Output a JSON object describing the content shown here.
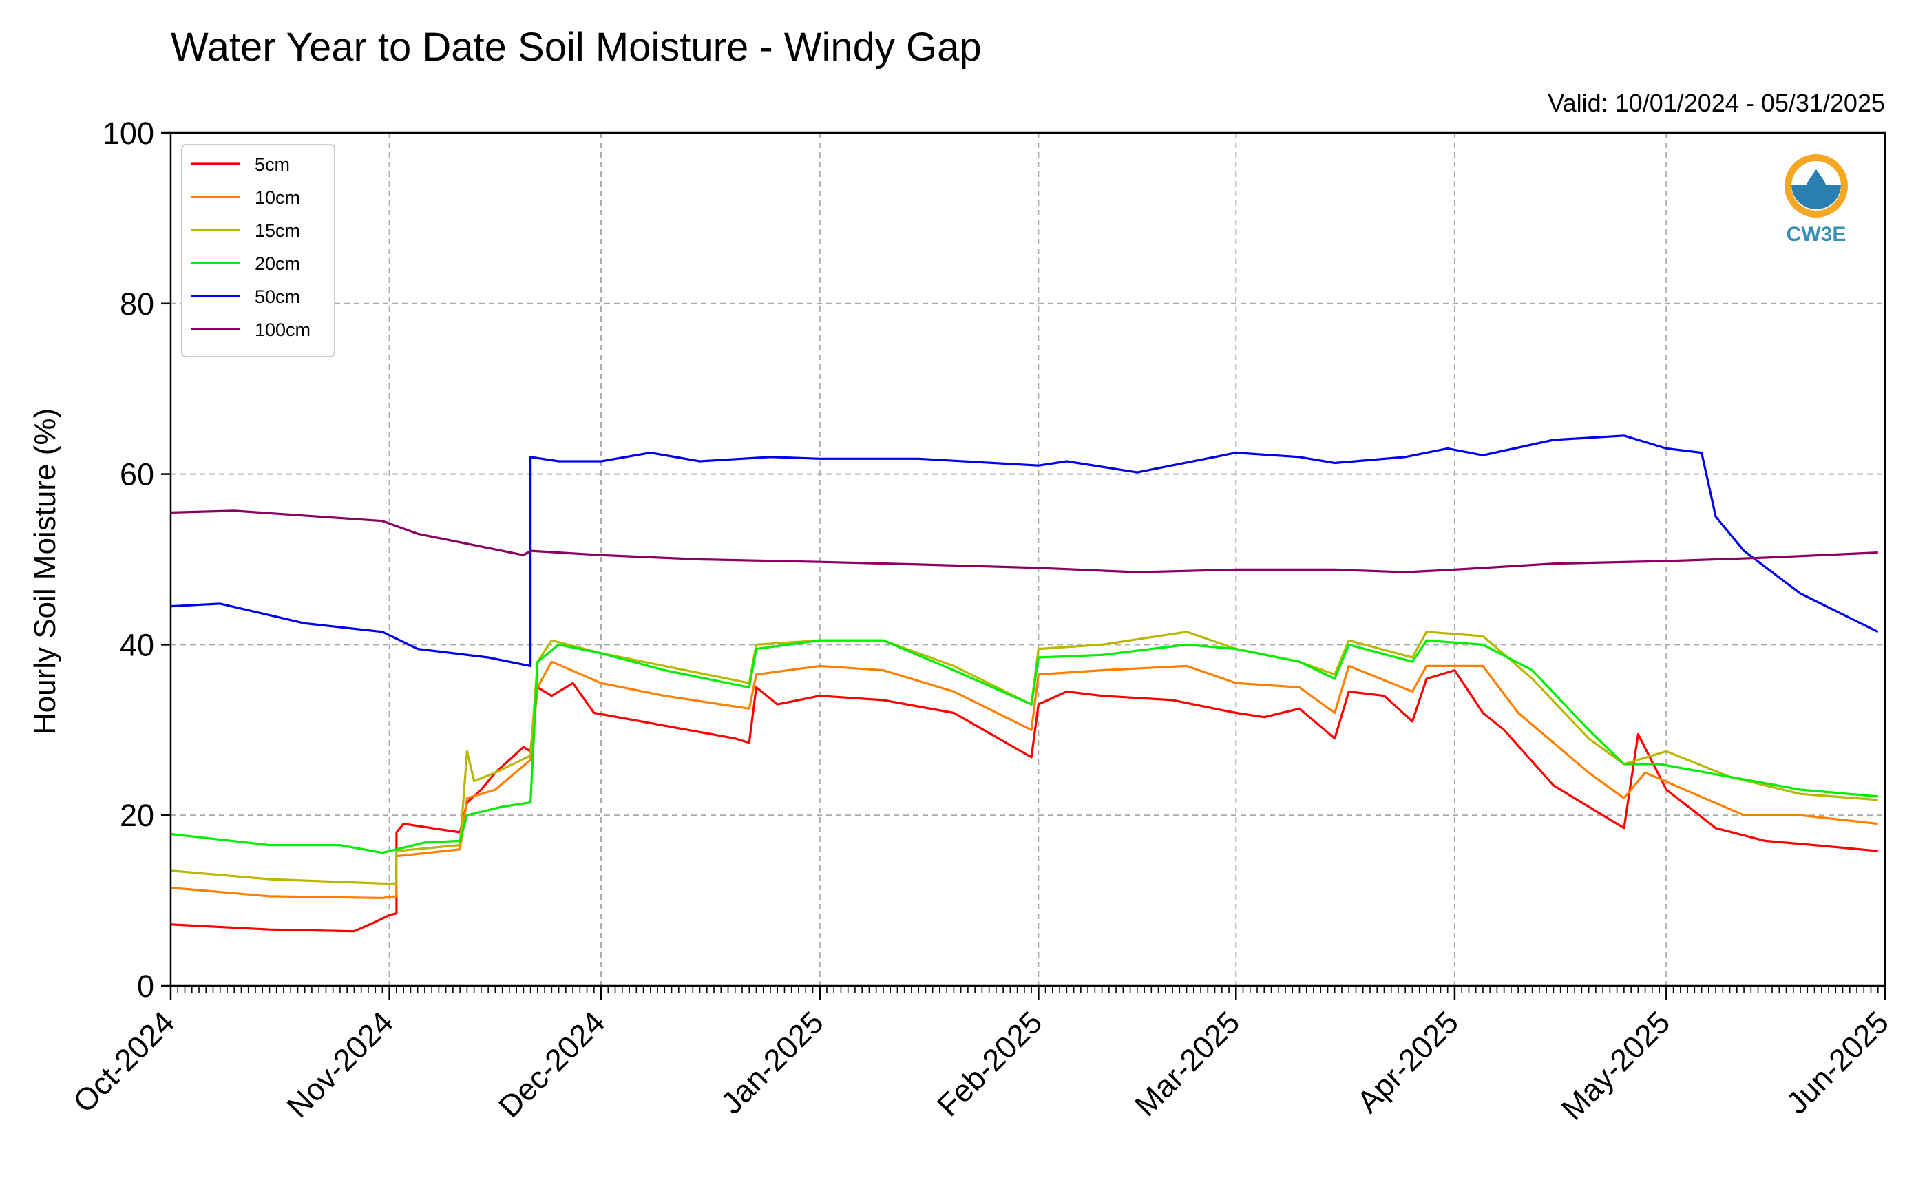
{
  "chart_data": {
    "type": "line",
    "title": "Water Year to Date Soil Moisture - Windy Gap",
    "subtitle": "Valid: 10/01/2024 - 05/31/2025",
    "ylabel": "Hourly Soil Moisture (%)",
    "xlabel": "",
    "ylim": [
      0,
      100
    ],
    "yticks": [
      "0",
      "20",
      "40",
      "60",
      "80",
      "100"
    ],
    "xlim": [
      "2024-10-01",
      "2025-06-01"
    ],
    "xticks": [
      {
        "date": "2024-10-01",
        "label": "Oct-2024"
      },
      {
        "date": "2024-11-01",
        "label": "Nov-2024"
      },
      {
        "date": "2024-12-01",
        "label": "Dec-2024"
      },
      {
        "date": "2025-01-01",
        "label": "Jan-2025"
      },
      {
        "date": "2025-02-01",
        "label": "Feb-2025"
      },
      {
        "date": "2025-03-01",
        "label": "Mar-2025"
      },
      {
        "date": "2025-04-01",
        "label": "Apr-2025"
      },
      {
        "date": "2025-05-01",
        "label": "May-2025"
      },
      {
        "date": "2025-06-01",
        "label": "Jun-2025"
      }
    ],
    "grid": true,
    "legend_position": "top-left",
    "logo_text": "CW3E",
    "series": [
      {
        "name": "5cm",
        "color": "#ff0000",
        "points": [
          [
            "2024-10-01",
            7.2
          ],
          [
            "2024-10-15",
            6.6
          ],
          [
            "2024-10-27",
            6.4
          ],
          [
            "2024-10-30",
            7.5
          ],
          [
            "2024-11-01",
            8.3
          ],
          [
            "2024-11-02",
            8.5
          ],
          [
            "2024-11-02",
            18.0
          ],
          [
            "2024-11-03",
            19.0
          ],
          [
            "2024-11-07",
            18.5
          ],
          [
            "2024-11-11",
            18.0
          ],
          [
            "2024-11-12",
            21.5
          ],
          [
            "2024-11-14",
            23.0
          ],
          [
            "2024-11-16",
            25.0
          ],
          [
            "2024-11-18",
            26.5
          ],
          [
            "2024-11-20",
            28.0
          ],
          [
            "2024-11-21",
            27.5
          ],
          [
            "2024-11-22",
            35.0
          ],
          [
            "2024-11-24",
            34.0
          ],
          [
            "2024-11-27",
            35.5
          ],
          [
            "2024-11-30",
            32.0
          ],
          [
            "2024-12-10",
            30.5
          ],
          [
            "2024-12-20",
            29.0
          ],
          [
            "2024-12-22",
            28.5
          ],
          [
            "2024-12-23",
            35.0
          ],
          [
            "2024-12-26",
            33.0
          ],
          [
            "2025-01-01",
            34.0
          ],
          [
            "2025-01-10",
            33.5
          ],
          [
            "2025-01-20",
            32.0
          ],
          [
            "2025-01-31",
            26.8
          ],
          [
            "2025-02-01",
            33.0
          ],
          [
            "2025-02-05",
            34.5
          ],
          [
            "2025-02-10",
            34.0
          ],
          [
            "2025-02-20",
            33.5
          ],
          [
            "2025-03-01",
            32.0
          ],
          [
            "2025-03-05",
            31.5
          ],
          [
            "2025-03-10",
            32.5
          ],
          [
            "2025-03-15",
            29.0
          ],
          [
            "2025-03-17",
            34.5
          ],
          [
            "2025-03-22",
            34.0
          ],
          [
            "2025-03-26",
            31.0
          ],
          [
            "2025-03-28",
            36.0
          ],
          [
            "2025-04-01",
            37.0
          ],
          [
            "2025-04-05",
            32.0
          ],
          [
            "2025-04-08",
            30.0
          ],
          [
            "2025-04-15",
            23.5
          ],
          [
            "2025-04-22",
            20.0
          ],
          [
            "2025-04-25",
            18.5
          ],
          [
            "2025-04-27",
            29.5
          ],
          [
            "2025-05-01",
            23.0
          ],
          [
            "2025-05-08",
            18.5
          ],
          [
            "2025-05-15",
            17.0
          ],
          [
            "2025-05-22",
            16.5
          ],
          [
            "2025-05-31",
            15.8
          ]
        ]
      },
      {
        "name": "10cm",
        "color": "#ff8000",
        "points": [
          [
            "2024-10-01",
            11.5
          ],
          [
            "2024-10-15",
            10.5
          ],
          [
            "2024-10-31",
            10.3
          ],
          [
            "2024-11-02",
            10.5
          ],
          [
            "2024-11-02",
            15.2
          ],
          [
            "2024-11-11",
            16.0
          ],
          [
            "2024-11-12",
            22.0
          ],
          [
            "2024-11-16",
            23.0
          ],
          [
            "2024-11-21",
            26.5
          ],
          [
            "2024-11-22",
            35.0
          ],
          [
            "2024-11-24",
            38.0
          ],
          [
            "2024-12-01",
            35.5
          ],
          [
            "2024-12-10",
            34.0
          ],
          [
            "2024-12-22",
            32.5
          ],
          [
            "2024-12-23",
            36.5
          ],
          [
            "2025-01-01",
            37.5
          ],
          [
            "2025-01-10",
            37.0
          ],
          [
            "2025-01-20",
            34.5
          ],
          [
            "2025-01-31",
            30.0
          ],
          [
            "2025-02-01",
            36.5
          ],
          [
            "2025-02-10",
            37.0
          ],
          [
            "2025-02-22",
            37.5
          ],
          [
            "2025-03-01",
            35.5
          ],
          [
            "2025-03-10",
            35.0
          ],
          [
            "2025-03-15",
            32.0
          ],
          [
            "2025-03-17",
            37.5
          ],
          [
            "2025-03-26",
            34.5
          ],
          [
            "2025-03-28",
            37.5
          ],
          [
            "2025-04-05",
            37.5
          ],
          [
            "2025-04-10",
            32.0
          ],
          [
            "2025-04-20",
            25.0
          ],
          [
            "2025-04-25",
            22.0
          ],
          [
            "2025-04-28",
            25.0
          ],
          [
            "2025-05-05",
            22.5
          ],
          [
            "2025-05-12",
            20.0
          ],
          [
            "2025-05-20",
            20.0
          ],
          [
            "2025-05-31",
            19.0
          ]
        ]
      },
      {
        "name": "15cm",
        "color": "#b8b800",
        "points": [
          [
            "2024-10-01",
            13.5
          ],
          [
            "2024-10-15",
            12.5
          ],
          [
            "2024-10-31",
            12.0
          ],
          [
            "2024-11-02",
            12.0
          ],
          [
            "2024-11-02",
            15.8
          ],
          [
            "2024-11-11",
            16.5
          ],
          [
            "2024-11-12",
            27.5
          ],
          [
            "2024-11-13",
            24.0
          ],
          [
            "2024-11-16",
            25.0
          ],
          [
            "2024-11-21",
            27.0
          ],
          [
            "2024-11-22",
            38.0
          ],
          [
            "2024-11-24",
            40.5
          ],
          [
            "2024-12-01",
            39.0
          ],
          [
            "2024-12-10",
            37.5
          ],
          [
            "2024-12-22",
            35.5
          ],
          [
            "2024-12-23",
            40.0
          ],
          [
            "2025-01-01",
            40.5
          ],
          [
            "2025-01-10",
            40.5
          ],
          [
            "2025-01-20",
            37.5
          ],
          [
            "2025-01-31",
            33.0
          ],
          [
            "2025-02-01",
            39.5
          ],
          [
            "2025-02-10",
            40.0
          ],
          [
            "2025-02-22",
            41.5
          ],
          [
            "2025-03-01",
            39.5
          ],
          [
            "2025-03-10",
            38.0
          ],
          [
            "2025-03-15",
            36.5
          ],
          [
            "2025-03-17",
            40.5
          ],
          [
            "2025-03-26",
            38.5
          ],
          [
            "2025-03-28",
            41.5
          ],
          [
            "2025-04-05",
            41.0
          ],
          [
            "2025-04-12",
            36.0
          ],
          [
            "2025-04-20",
            29.0
          ],
          [
            "2025-04-25",
            26.0
          ],
          [
            "2025-05-01",
            27.5
          ],
          [
            "2025-05-10",
            24.5
          ],
          [
            "2025-05-20",
            22.5
          ],
          [
            "2025-05-31",
            21.8
          ]
        ]
      },
      {
        "name": "20cm",
        "color": "#00ee00",
        "points": [
          [
            "2024-10-01",
            17.8
          ],
          [
            "2024-10-15",
            16.5
          ],
          [
            "2024-10-25",
            16.5
          ],
          [
            "2024-10-31",
            15.6
          ],
          [
            "2024-11-02",
            16.0
          ],
          [
            "2024-11-06",
            16.8
          ],
          [
            "2024-11-11",
            17.0
          ],
          [
            "2024-11-12",
            20.0
          ],
          [
            "2024-11-17",
            21.0
          ],
          [
            "2024-11-21",
            21.5
          ],
          [
            "2024-11-22",
            38.0
          ],
          [
            "2024-11-25",
            40.0
          ],
          [
            "2024-12-01",
            39.0
          ],
          [
            "2024-12-10",
            37.0
          ],
          [
            "2024-12-22",
            35.0
          ],
          [
            "2024-12-23",
            39.5
          ],
          [
            "2025-01-01",
            40.5
          ],
          [
            "2025-01-10",
            40.5
          ],
          [
            "2025-01-20",
            37.0
          ],
          [
            "2025-01-31",
            33.0
          ],
          [
            "2025-02-01",
            38.5
          ],
          [
            "2025-02-10",
            38.8
          ],
          [
            "2025-02-22",
            40.0
          ],
          [
            "2025-03-01",
            39.5
          ],
          [
            "2025-03-10",
            38.0
          ],
          [
            "2025-03-15",
            36.0
          ],
          [
            "2025-03-17",
            40.0
          ],
          [
            "2025-03-26",
            38.0
          ],
          [
            "2025-03-28",
            40.5
          ],
          [
            "2025-04-05",
            40.0
          ],
          [
            "2025-04-12",
            37.0
          ],
          [
            "2025-04-20",
            30.0
          ],
          [
            "2025-04-25",
            26.0
          ],
          [
            "2025-04-30",
            26.0
          ],
          [
            "2025-05-10",
            24.5
          ],
          [
            "2025-05-20",
            23.0
          ],
          [
            "2025-05-31",
            22.2
          ]
        ]
      },
      {
        "name": "50cm",
        "color": "#0000ee",
        "points": [
          [
            "2024-10-01",
            44.5
          ],
          [
            "2024-10-08",
            44.8
          ],
          [
            "2024-10-20",
            42.5
          ],
          [
            "2024-10-31",
            41.5
          ],
          [
            "2024-11-05",
            39.5
          ],
          [
            "2024-11-15",
            38.5
          ],
          [
            "2024-11-21",
            37.5
          ],
          [
            "2024-11-21",
            62.0
          ],
          [
            "2024-11-25",
            61.5
          ],
          [
            "2024-12-01",
            61.5
          ],
          [
            "2024-12-08",
            62.5
          ],
          [
            "2024-12-15",
            61.5
          ],
          [
            "2024-12-25",
            62.0
          ],
          [
            "2025-01-01",
            61.8
          ],
          [
            "2025-01-15",
            61.8
          ],
          [
            "2025-02-01",
            61.0
          ],
          [
            "2025-02-05",
            61.5
          ],
          [
            "2025-02-15",
            60.2
          ],
          [
            "2025-03-01",
            62.5
          ],
          [
            "2025-03-10",
            62.0
          ],
          [
            "2025-03-15",
            61.3
          ],
          [
            "2025-03-25",
            62.0
          ],
          [
            "2025-03-31",
            63.0
          ],
          [
            "2025-04-05",
            62.2
          ],
          [
            "2025-04-15",
            64.0
          ],
          [
            "2025-04-25",
            64.5
          ],
          [
            "2025-05-01",
            63.0
          ],
          [
            "2025-05-06",
            62.5
          ],
          [
            "2025-05-08",
            55.0
          ],
          [
            "2025-05-12",
            51.0
          ],
          [
            "2025-05-20",
            46.0
          ],
          [
            "2025-05-31",
            41.5
          ]
        ]
      },
      {
        "name": "100cm",
        "color": "#8b0060",
        "points": [
          [
            "2024-10-01",
            55.5
          ],
          [
            "2024-10-10",
            55.7
          ],
          [
            "2024-10-31",
            54.5
          ],
          [
            "2024-11-05",
            53.0
          ],
          [
            "2024-11-20",
            50.5
          ],
          [
            "2024-11-21",
            51.0
          ],
          [
            "2024-12-01",
            50.5
          ],
          [
            "2024-12-15",
            50.0
          ],
          [
            "2025-01-01",
            49.7
          ],
          [
            "2025-01-15",
            49.4
          ],
          [
            "2025-02-01",
            49.0
          ],
          [
            "2025-02-15",
            48.5
          ],
          [
            "2025-03-01",
            48.8
          ],
          [
            "2025-03-15",
            48.8
          ],
          [
            "2025-03-25",
            48.5
          ],
          [
            "2025-04-01",
            48.8
          ],
          [
            "2025-04-15",
            49.5
          ],
          [
            "2025-05-01",
            49.8
          ],
          [
            "2025-05-15",
            50.2
          ],
          [
            "2025-05-31",
            50.8
          ]
        ]
      }
    ]
  }
}
